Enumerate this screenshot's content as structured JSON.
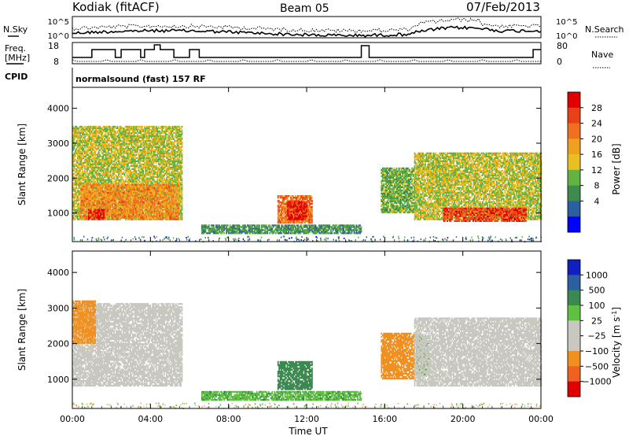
{
  "header": {
    "station": "Kodiak (fitACF)",
    "beam": "Beam 05",
    "date": "07/Feb/2013"
  },
  "top_panels": {
    "nsky_label": "N.Sky",
    "nsearch_label": "N.Search",
    "noise_ticks": [
      "10^5",
      "10^0"
    ],
    "freq_label_1": "Freq.",
    "freq_label_2": "[MHz]",
    "freq_ticks": [
      "18",
      "8"
    ],
    "nave_label": "Nave",
    "nave_ticks": [
      "80",
      "0"
    ],
    "cpid_label": "CPID",
    "cpid_value": "normalsound (fast) 157 RF"
  },
  "colors": {
    "power_scale": [
      "#0000ff",
      "#2c5fa0",
      "#3d8b4e",
      "#63b342",
      "#e8c020",
      "#f0a020",
      "#f07020",
      "#e84018",
      "#e00000"
    ],
    "velocity_scale": [
      "#e00000",
      "#f06020",
      "#f09020",
      "#f0b060",
      "#c8c8c0",
      "#c8c8c0",
      "#60c040",
      "#3a8a50",
      "#2c5fa0",
      "#1020c0"
    ]
  },
  "chart_data": [
    {
      "type": "heatmap",
      "panel": "power",
      "xlabel": "",
      "ylabel": "Slant Range [km]",
      "x_ticks": [
        "00:00",
        "04:00",
        "08:00",
        "12:00",
        "16:00",
        "20:00",
        "00:00"
      ],
      "xlim_hours": [
        0,
        24
      ],
      "ylim_km": [
        180,
        4600
      ],
      "y_ticks": [
        1000,
        2000,
        3000,
        4000
      ],
      "colorbar": {
        "label": "Power [dB]",
        "ticks": [
          "28",
          "24",
          "20",
          "16",
          "12",
          "8",
          "4"
        ],
        "range": [
          0,
          30
        ]
      },
      "patches": [
        {
          "t0": 0.0,
          "t1": 5.6,
          "r0": 800,
          "r1": 3500,
          "value": 14
        },
        {
          "t0": 0.4,
          "t1": 5.4,
          "r0": 800,
          "r1": 1800,
          "value": 20
        },
        {
          "t0": 0.8,
          "t1": 1.6,
          "r0": 800,
          "r1": 1100,
          "value": 27
        },
        {
          "t0": 6.6,
          "t1": 14.8,
          "r0": 400,
          "r1": 650,
          "value": 9
        },
        {
          "t0": 10.5,
          "t1": 12.3,
          "r0": 700,
          "r1": 1500,
          "value": 22
        },
        {
          "t0": 11.0,
          "t1": 12.0,
          "r0": 800,
          "r1": 1300,
          "value": 28
        },
        {
          "t0": 15.8,
          "t1": 17.5,
          "r0": 1000,
          "r1": 2300,
          "value": 11
        },
        {
          "t0": 17.5,
          "t1": 24.0,
          "r0": 800,
          "r1": 2700,
          "value": 14
        },
        {
          "t0": 19.0,
          "t1": 23.2,
          "r0": 750,
          "r1": 1150,
          "value": 25
        }
      ]
    },
    {
      "type": "heatmap",
      "panel": "velocity",
      "xlabel": "Time UT",
      "ylabel": "Slant Range [km]",
      "x_ticks": [
        "00:00",
        "04:00",
        "08:00",
        "12:00",
        "16:00",
        "20:00",
        "00:00"
      ],
      "xlim_hours": [
        0,
        24
      ],
      "ylim_km": [
        180,
        4600
      ],
      "y_ticks": [
        1000,
        2000,
        3000,
        4000
      ],
      "colorbar": {
        "label": "Velocity [m s",
        "label_sup": "-1",
        "label_end": "]",
        "ticks": [
          "1000",
          "500",
          "100",
          "25",
          "−25",
          "−100",
          "−500",
          "−1000"
        ]
      },
      "patches": [
        {
          "t0": 0.0,
          "t1": 5.6,
          "r0": 800,
          "r1": 3100,
          "value": 0
        },
        {
          "t0": 0.0,
          "t1": 1.2,
          "r0": 2000,
          "r1": 3200,
          "value": -150
        },
        {
          "t0": 6.6,
          "t1": 14.8,
          "r0": 400,
          "r1": 650,
          "value": 80
        },
        {
          "t0": 10.5,
          "t1": 12.3,
          "r0": 700,
          "r1": 1500,
          "value": 300
        },
        {
          "t0": 15.8,
          "t1": 17.5,
          "r0": 1000,
          "r1": 2300,
          "value": -300
        },
        {
          "t0": 17.6,
          "t1": 18.2,
          "r0": 1100,
          "r1": 2200,
          "value": 80
        },
        {
          "t0": 17.5,
          "t1": 24.0,
          "r0": 800,
          "r1": 2700,
          "value": 0
        }
      ]
    }
  ]
}
